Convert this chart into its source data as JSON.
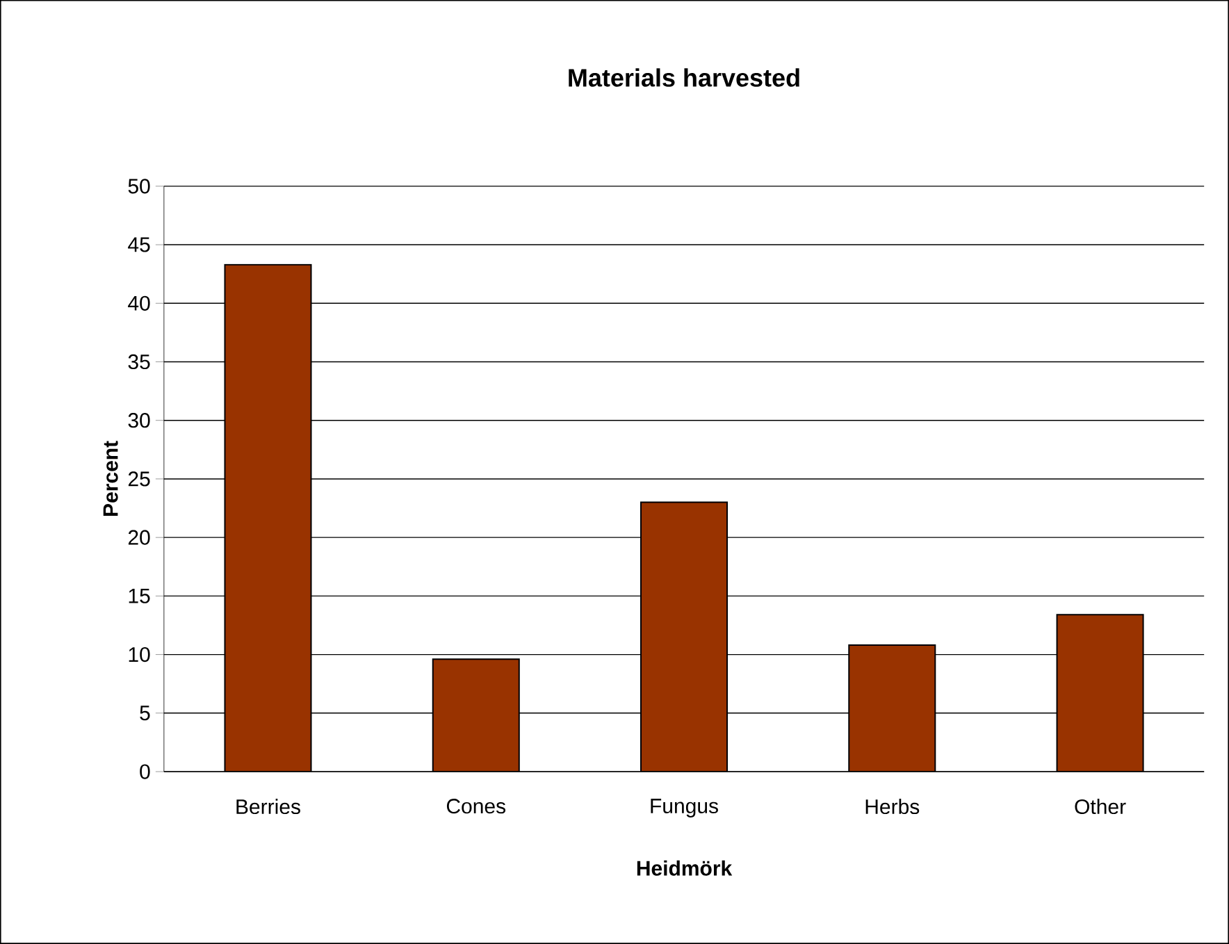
{
  "chart_data": {
    "type": "bar",
    "title": "Materials harvested",
    "xlabel": "Heidmörk",
    "ylabel": "Percent",
    "categories": [
      "Berries",
      "Cones",
      "Fungus",
      "Herbs",
      "Other"
    ],
    "values": [
      43.3,
      9.6,
      23.0,
      10.8,
      13.4
    ],
    "color": "#993300",
    "ylim": [
      0,
      50
    ],
    "yticks": [
      0,
      5,
      10,
      15,
      20,
      25,
      30,
      35,
      40,
      45,
      50
    ],
    "grid": "y"
  }
}
